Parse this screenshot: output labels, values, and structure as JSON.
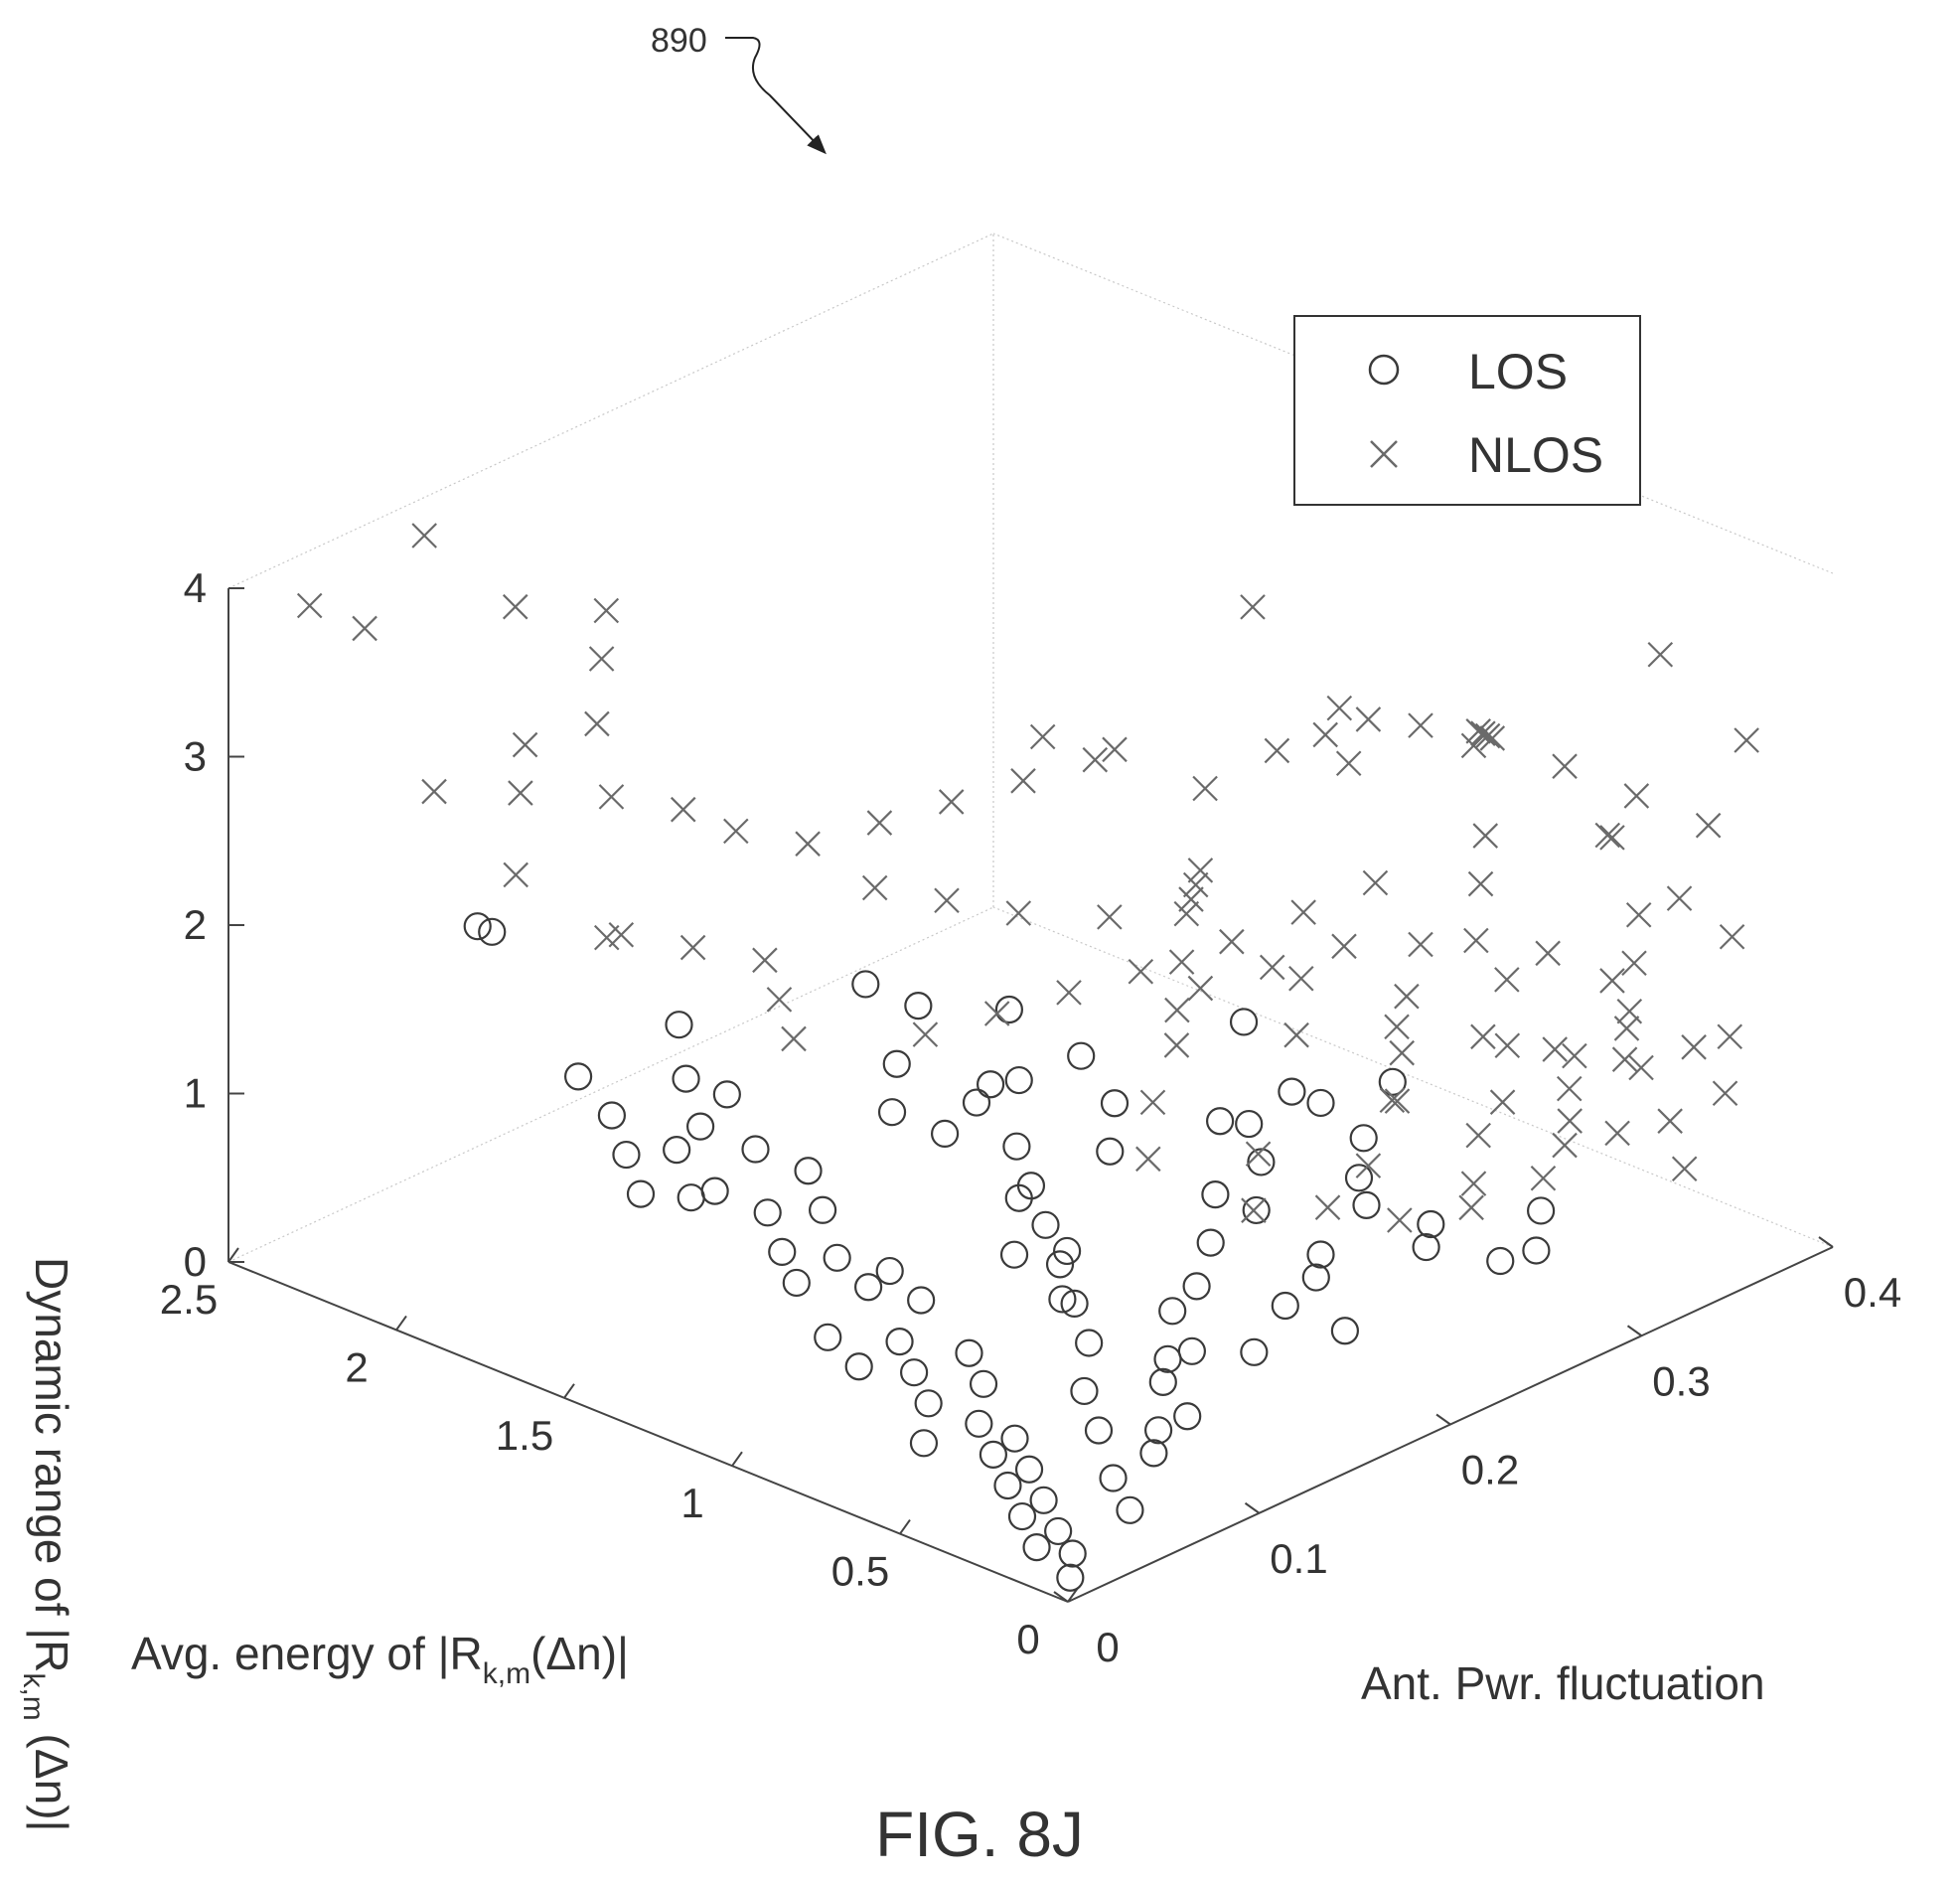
{
  "figure": {
    "ref_number": "890",
    "caption": "FIG. 8J"
  },
  "chart_data": {
    "type": "scatter",
    "projection": "3d",
    "title": "",
    "grid": false,
    "legend_position": "top-right",
    "axes": {
      "x": {
        "label_parts": [
          "Avg. energy of |R",
          "k,m",
          "(Δn)|"
        ],
        "range": [
          0,
          2.5
        ],
        "ticks": [
          0,
          0.5,
          1,
          1.5,
          2,
          2.5
        ],
        "tick_labels": [
          "0",
          "0.5",
          "1",
          "1.5",
          "2",
          "2.5"
        ]
      },
      "y": {
        "label_parts": [
          "Ant. Pwr. fluctuation"
        ],
        "range": [
          0,
          0.4
        ],
        "ticks": [
          0,
          0.1,
          0.2,
          0.3,
          0.4
        ],
        "tick_labels": [
          "0",
          "0.1",
          "0.2",
          "0.3",
          "0.4"
        ]
      },
      "z": {
        "label_parts": [
          "Dynamic range of |R",
          "k,m",
          " (Δn)|"
        ],
        "range": [
          0,
          4
        ],
        "ticks": [
          0,
          1,
          2,
          3,
          4
        ],
        "tick_labels": [
          "0",
          "1",
          "2",
          "3",
          "4"
        ]
      }
    },
    "series": [
      {
        "name": "LOS",
        "marker": "circle",
        "color": "#3a3a3a",
        "points": [
          [
            0.05,
            0.01,
            0.05
          ],
          [
            0.1,
            0.02,
            0.1
          ],
          [
            0.15,
            0.01,
            0.15
          ],
          [
            0.2,
            0.03,
            0.1
          ],
          [
            0.25,
            0.02,
            0.2
          ],
          [
            0.3,
            0.04,
            0.15
          ],
          [
            0.35,
            0.03,
            0.25
          ],
          [
            0.4,
            0.05,
            0.2
          ],
          [
            0.45,
            0.04,
            0.3
          ],
          [
            0.5,
            0.06,
            0.25
          ],
          [
            0.55,
            0.05,
            0.35
          ],
          [
            0.6,
            0.03,
            0.3
          ],
          [
            0.65,
            0.07,
            0.4
          ],
          [
            0.7,
            0.05,
            0.35
          ],
          [
            0.75,
            0.08,
            0.45
          ],
          [
            0.8,
            0.06,
            0.4
          ],
          [
            0.85,
            0.04,
            0.5
          ],
          [
            0.9,
            0.07,
            0.45
          ],
          [
            0.95,
            0.09,
            0.55
          ],
          [
            1.0,
            0.05,
            0.5
          ],
          [
            1.05,
            0.08,
            0.6
          ],
          [
            1.1,
            0.1,
            0.55
          ],
          [
            1.15,
            0.06,
            0.65
          ],
          [
            1.2,
            0.09,
            0.6
          ],
          [
            1.25,
            0.07,
            0.7
          ],
          [
            1.3,
            0.1,
            0.75
          ],
          [
            1.35,
            0.08,
            0.8
          ],
          [
            1.4,
            0.11,
            0.85
          ],
          [
            1.45,
            0.07,
            0.9
          ],
          [
            1.5,
            0.1,
            0.95
          ],
          [
            0.1,
            0.05,
            0.2
          ],
          [
            0.2,
            0.08,
            0.3
          ],
          [
            0.3,
            0.1,
            0.25
          ],
          [
            0.4,
            0.12,
            0.35
          ],
          [
            0.5,
            0.14,
            0.3
          ],
          [
            0.6,
            0.16,
            0.4
          ],
          [
            0.3,
            0.15,
            0.45
          ],
          [
            0.2,
            0.18,
            0.5
          ],
          [
            0.4,
            0.2,
            0.55
          ],
          [
            0.5,
            0.22,
            0.5
          ],
          [
            0.3,
            0.24,
            0.6
          ],
          [
            0.4,
            0.26,
            0.55
          ],
          [
            0.2,
            0.28,
            0.45
          ],
          [
            0.3,
            0.3,
            0.5
          ],
          [
            0.25,
            0.27,
            0.4
          ],
          [
            0.7,
            0.12,
            0.6
          ],
          [
            0.8,
            0.14,
            0.7
          ],
          [
            0.9,
            0.13,
            0.65
          ],
          [
            1.0,
            0.15,
            0.8
          ],
          [
            0.6,
            0.18,
            0.7
          ],
          [
            0.7,
            0.2,
            0.8
          ],
          [
            0.5,
            0.24,
            0.85
          ],
          [
            0.6,
            0.26,
            0.9
          ],
          [
            0.15,
            0.05,
            0.35
          ],
          [
            0.25,
            0.06,
            0.5
          ],
          [
            0.35,
            0.07,
            0.6
          ],
          [
            0.45,
            0.09,
            0.7
          ],
          [
            0.55,
            0.1,
            0.8
          ],
          [
            0.65,
            0.11,
            0.9
          ],
          [
            0.75,
            0.12,
            1.0
          ],
          [
            0.85,
            0.13,
            1.1
          ],
          [
            0.95,
            0.14,
            1.2
          ],
          [
            1.05,
            0.12,
            1.3
          ],
          [
            1.15,
            0.11,
            1.4
          ],
          [
            1.25,
            0.13,
            1.5
          ],
          [
            0.9,
            0.18,
            1.0
          ],
          [
            1.0,
            0.2,
            1.1
          ],
          [
            0.8,
            0.22,
            1.05
          ],
          [
            0.7,
            0.24,
            1.2
          ],
          [
            1.1,
            0.2,
            1.3
          ],
          [
            1.2,
            0.18,
            1.6
          ],
          [
            1.3,
            0.15,
            1.7
          ],
          [
            1.4,
            0.14,
            1.8
          ],
          [
            0.6,
            0.2,
            1.3
          ],
          [
            0.5,
            0.22,
            1.4
          ],
          [
            0.4,
            0.24,
            1.5
          ],
          [
            0.9,
            0.25,
            1.4
          ],
          [
            1.5,
            0.04,
            1.0
          ],
          [
            1.6,
            0.05,
            1.1
          ],
          [
            1.7,
            0.06,
            1.2
          ],
          [
            1.55,
            0.08,
            1.15
          ],
          [
            1.65,
            0.09,
            1.3
          ],
          [
            1.45,
            0.05,
            1.25
          ],
          [
            1.8,
            0.06,
            1.35
          ],
          [
            1.35,
            0.04,
            1.1
          ],
          [
            0.2,
            0.1,
            0.8
          ],
          [
            0.3,
            0.12,
            1.0
          ],
          [
            0.1,
            0.08,
            0.6
          ],
          [
            0.15,
            0.14,
            0.9
          ],
          [
            0.35,
            0.16,
            1.2
          ],
          [
            0.25,
            0.2,
            1.1
          ],
          [
            0.45,
            0.18,
            1.3
          ],
          [
            2.0,
            0.05,
            2.1
          ],
          [
            2.1,
            0.06,
            2.0
          ],
          [
            1.3,
            0.05,
            1.7
          ],
          [
            1.5,
            0.06,
            1.9
          ],
          [
            0.5,
            0.04,
            2.35
          ],
          [
            0.8,
            0.1,
            1.9
          ],
          [
            1.0,
            0.15,
            1.5
          ]
        ]
      },
      {
        "name": "NLOS",
        "marker": "x",
        "color": "#6a6a6a",
        "points": [
          [
            0.5,
            0.3,
            0.5
          ],
          [
            0.6,
            0.32,
            0.6
          ],
          [
            0.7,
            0.28,
            0.55
          ],
          [
            0.8,
            0.31,
            0.7
          ],
          [
            0.5,
            0.35,
            0.8
          ],
          [
            0.4,
            0.33,
            0.65
          ],
          [
            0.6,
            0.36,
            0.9
          ],
          [
            0.3,
            0.34,
            0.75
          ],
          [
            0.7,
            0.34,
            1.0
          ],
          [
            0.8,
            0.37,
            1.1
          ],
          [
            0.9,
            0.33,
            0.95
          ],
          [
            1.0,
            0.36,
            1.2
          ],
          [
            0.5,
            0.38,
            1.0
          ],
          [
            0.4,
            0.37,
            0.9
          ],
          [
            0.6,
            0.39,
            1.15
          ],
          [
            0.3,
            0.38,
            1.05
          ],
          [
            0.2,
            0.35,
            0.85
          ],
          [
            0.1,
            0.34,
            0.7
          ],
          [
            0.15,
            0.37,
            0.95
          ],
          [
            0.25,
            0.39,
            1.1
          ],
          [
            0.35,
            0.31,
            0.6
          ],
          [
            0.45,
            0.29,
            0.45
          ],
          [
            0.55,
            0.27,
            0.4
          ],
          [
            0.65,
            0.25,
            0.5
          ],
          [
            0.7,
            0.22,
            0.6
          ],
          [
            0.8,
            0.24,
            0.75
          ],
          [
            0.9,
            0.2,
            0.85
          ],
          [
            1.0,
            0.22,
            1.0
          ],
          [
            1.1,
            0.25,
            1.1
          ],
          [
            1.2,
            0.28,
            1.2
          ],
          [
            1.1,
            0.3,
            1.3
          ],
          [
            1.0,
            0.32,
            1.4
          ],
          [
            0.9,
            0.28,
            1.5
          ],
          [
            0.8,
            0.26,
            1.35
          ],
          [
            0.7,
            0.3,
            1.45
          ],
          [
            0.6,
            0.28,
            1.3
          ],
          [
            0.5,
            0.26,
            1.2
          ],
          [
            0.4,
            0.3,
            1.4
          ],
          [
            0.3,
            0.28,
            1.25
          ],
          [
            0.2,
            0.3,
            1.5
          ],
          [
            0.1,
            0.28,
            1.3
          ],
          [
            0.05,
            0.3,
            1.6
          ],
          [
            0.15,
            0.32,
            1.7
          ],
          [
            0.25,
            0.34,
            1.8
          ],
          [
            0.35,
            0.36,
            1.9
          ],
          [
            0.45,
            0.33,
            1.75
          ],
          [
            0.55,
            0.31,
            1.85
          ],
          [
            0.65,
            0.33,
            2.0
          ],
          [
            0.75,
            0.35,
            2.1
          ],
          [
            0.85,
            0.31,
            1.95
          ],
          [
            0.95,
            0.29,
            1.8
          ],
          [
            1.05,
            0.27,
            1.65
          ],
          [
            1.15,
            0.24,
            1.55
          ],
          [
            1.25,
            0.22,
            1.45
          ],
          [
            1.35,
            0.2,
            1.35
          ],
          [
            1.45,
            0.18,
            1.25
          ],
          [
            1.3,
            0.25,
            1.7
          ],
          [
            1.4,
            0.22,
            1.8
          ],
          [
            1.5,
            0.2,
            1.9
          ],
          [
            1.6,
            0.18,
            2.0
          ],
          [
            1.2,
            0.28,
            1.9
          ],
          [
            1.1,
            0.26,
            2.0
          ],
          [
            1.0,
            0.24,
            2.1
          ],
          [
            0.9,
            0.22,
            2.2
          ],
          [
            0.8,
            0.2,
            2.1
          ],
          [
            0.7,
            0.18,
            2.0
          ],
          [
            1.5,
            0.12,
            1.5
          ],
          [
            1.6,
            0.13,
            1.6
          ],
          [
            1.7,
            0.14,
            1.7
          ],
          [
            1.8,
            0.12,
            1.8
          ],
          [
            1.9,
            0.1,
            1.9
          ],
          [
            2.0,
            0.11,
            1.75
          ],
          [
            1.8,
            0.18,
            2.1
          ],
          [
            1.9,
            0.16,
            2.2
          ],
          [
            2.0,
            0.15,
            2.3
          ],
          [
            2.1,
            0.13,
            2.4
          ],
          [
            1.7,
            0.2,
            2.2
          ],
          [
            1.6,
            0.22,
            2.3
          ],
          [
            1.5,
            0.24,
            2.4
          ],
          [
            1.4,
            0.26,
            2.5
          ],
          [
            2.2,
            0.1,
            2.5
          ],
          [
            2.3,
            0.12,
            2.6
          ],
          [
            2.4,
            0.09,
            2.4
          ],
          [
            2.1,
            0.08,
            2.2
          ],
          [
            2.2,
            0.14,
            2.7
          ],
          [
            2.3,
            0.16,
            2.9
          ],
          [
            2.4,
            0.18,
            3.0
          ],
          [
            2.5,
            0.15,
            3.1
          ],
          [
            1.3,
            0.3,
            2.2
          ],
          [
            1.2,
            0.32,
            2.4
          ],
          [
            1.1,
            0.34,
            2.3
          ],
          [
            1.0,
            0.36,
            2.5
          ],
          [
            0.9,
            0.38,
            2.4
          ],
          [
            0.8,
            0.36,
            2.6
          ],
          [
            0.7,
            0.34,
            2.8
          ],
          [
            0.6,
            0.32,
            3.0
          ],
          [
            0.5,
            0.3,
            3.1
          ],
          [
            0.4,
            0.33,
            2.9
          ],
          [
            0.3,
            0.35,
            2.7
          ],
          [
            0.2,
            0.37,
            2.5
          ],
          [
            0.5,
            0.37,
            2.2
          ],
          [
            0.6,
            0.39,
            2.0
          ],
          [
            0.4,
            0.39,
            1.8
          ],
          [
            0.3,
            0.4,
            1.6
          ],
          [
            2.6,
            0.06,
            3.5
          ],
          [
            2.55,
            0.08,
            3.3
          ],
          [
            2.6,
            0.12,
            3.6
          ],
          [
            1.5,
            0.36,
            2.8
          ],
          [
            0.2,
            0.39,
            2.9
          ],
          [
            0.4,
            0.38,
            3.3
          ],
          [
            1.0,
            0.2,
            3.2
          ],
          [
            1.1,
            0.18,
            3.3
          ],
          [
            0.6,
            0.24,
            3.4
          ],
          [
            0.9,
            0.3,
            3.0
          ],
          [
            0.7,
            0.28,
            3.2
          ]
        ]
      }
    ]
  }
}
